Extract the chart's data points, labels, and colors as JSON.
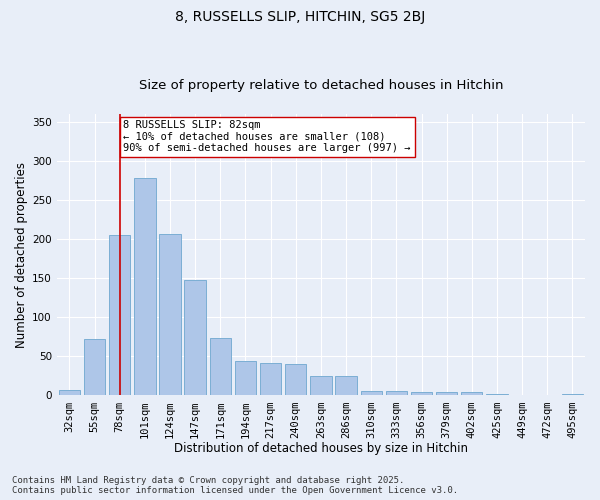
{
  "title_line1": "8, RUSSELLS SLIP, HITCHIN, SG5 2BJ",
  "title_line2": "Size of property relative to detached houses in Hitchin",
  "xlabel": "Distribution of detached houses by size in Hitchin",
  "ylabel": "Number of detached properties",
  "categories": [
    "32sqm",
    "55sqm",
    "78sqm",
    "101sqm",
    "124sqm",
    "147sqm",
    "171sqm",
    "194sqm",
    "217sqm",
    "240sqm",
    "263sqm",
    "286sqm",
    "310sqm",
    "333sqm",
    "356sqm",
    "379sqm",
    "402sqm",
    "425sqm",
    "449sqm",
    "472sqm",
    "495sqm"
  ],
  "values": [
    7,
    72,
    205,
    278,
    207,
    148,
    73,
    44,
    42,
    40,
    25,
    25,
    6,
    6,
    4,
    4,
    5,
    2,
    1,
    1,
    2
  ],
  "bar_color": "#aec6e8",
  "bar_edge_color": "#7baed4",
  "background_color": "#e8eef8",
  "grid_color": "#ffffff",
  "vline_x_index": 2,
  "vline_color": "#cc0000",
  "annotation_text": "8 RUSSELLS SLIP: 82sqm\n← 10% of detached houses are smaller (108)\n90% of semi-detached houses are larger (997) →",
  "annotation_box_color": "#ffffff",
  "annotation_box_edge": "#cc0000",
  "ylim": [
    0,
    360
  ],
  "yticks": [
    0,
    50,
    100,
    150,
    200,
    250,
    300,
    350
  ],
  "footer_text": "Contains HM Land Registry data © Crown copyright and database right 2025.\nContains public sector information licensed under the Open Government Licence v3.0.",
  "title_fontsize": 10,
  "subtitle_fontsize": 9.5,
  "axis_label_fontsize": 8.5,
  "tick_fontsize": 7.5,
  "annotation_fontsize": 7.5,
  "footer_fontsize": 6.5
}
